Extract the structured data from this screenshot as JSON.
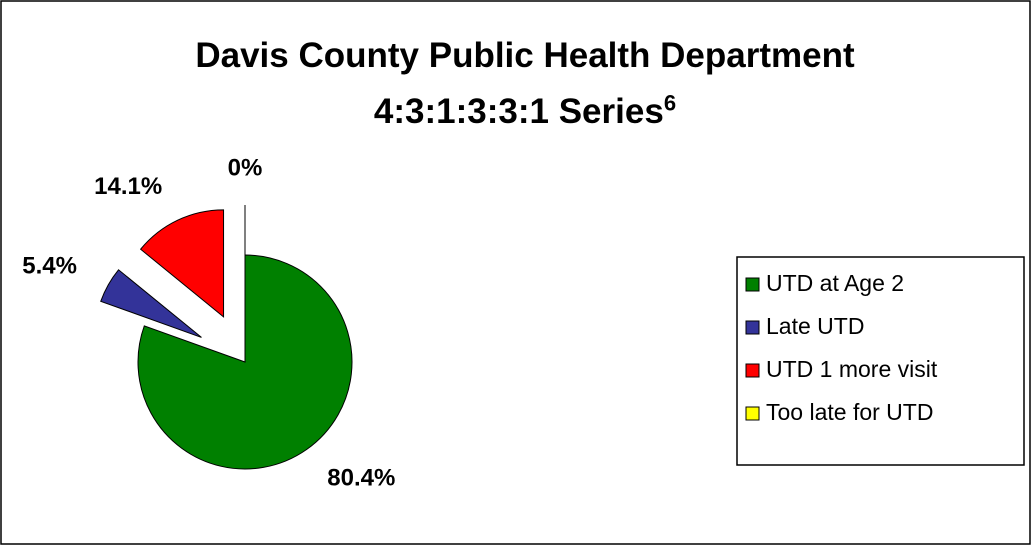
{
  "chart_data": {
    "type": "pie",
    "title": "Davis County Public Health Department 4:3:1:3:3:1 Series",
    "title_superscript": "6",
    "categories": [
      "UTD at Age 2",
      "Late UTD",
      "UTD 1 more visit",
      "Too late for UTD"
    ],
    "values": [
      80.4,
      5.4,
      14.1,
      0
    ],
    "value_labels": [
      "80.4%",
      "5.4%",
      "14.1%",
      "0%"
    ],
    "colors": [
      "#008000",
      "#333399",
      "#ff0000",
      "#ffff00"
    ],
    "legend": "right"
  }
}
